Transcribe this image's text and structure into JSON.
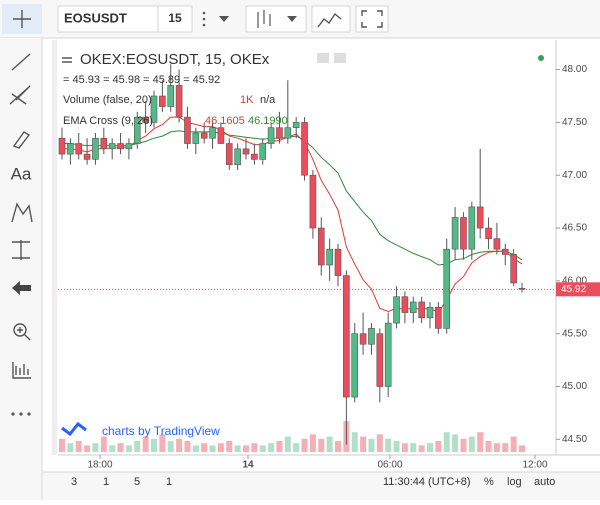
{
  "toolbar": {
    "symbol": "EOSUSDT",
    "interval": "15"
  },
  "sidebar": {
    "text_tool": "Aa"
  },
  "chart_data": {
    "type": "candlestick",
    "title": "OKEX:EOSUSDT, 15, OKEx",
    "ohlc_legend": "= 45.93 = 45.98 = 45.89 = 45.92",
    "volume_legend": {
      "name": "Volume (false, 20)",
      "value": "1K",
      "ma": "n/a"
    },
    "ema_legend": {
      "name": "EMA Cross (9, 26)",
      "fast": "46.1605",
      "slow": "46.1990"
    },
    "watermark": "charts by TradingView",
    "x_labels": [
      "18:00",
      "14",
      "06:00",
      "12:00"
    ],
    "up_color": "#53b987",
    "down_color": "#eb4d5c",
    "open": [
      47.35,
      47.2,
      47.3,
      47.2,
      47.15,
      47.35,
      47.25,
      47.3,
      47.25,
      47.3,
      47.55,
      47.5,
      47.75,
      47.65,
      47.85,
      47.55,
      47.3,
      47.4,
      47.35,
      47.45,
      47.3,
      47.1,
      47.25,
      47.2,
      47.15,
      47.3,
      47.45,
      47.35,
      47.45,
      47.5,
      47.0,
      46.5,
      46.15,
      46.3,
      46.05,
      44.9,
      45.5,
      45.4,
      45.5,
      45.0,
      45.6,
      45.85,
      45.7,
      45.8,
      45.65,
      45.75,
      45.55,
      46.3,
      46.6,
      46.3,
      46.7,
      46.5,
      46.4,
      46.3,
      46.25,
      45.93
    ],
    "high": [
      47.45,
      47.35,
      47.4,
      47.35,
      47.4,
      47.45,
      47.35,
      47.4,
      47.35,
      47.6,
      47.7,
      47.8,
      47.9,
      48.05,
      48.0,
      47.65,
      47.45,
      47.5,
      47.5,
      47.5,
      47.35,
      47.3,
      47.35,
      47.3,
      47.35,
      47.5,
      47.6,
      47.9,
      47.55,
      47.55,
      47.05,
      46.6,
      46.4,
      46.35,
      46.1,
      45.6,
      45.7,
      45.6,
      45.55,
      45.7,
      45.95,
      45.9,
      45.85,
      45.85,
      45.8,
      45.8,
      46.4,
      46.7,
      46.65,
      46.75,
      47.25,
      46.6,
      46.55,
      46.35,
      46.3,
      45.98
    ],
    "low": [
      47.15,
      47.1,
      47.15,
      47.1,
      47.1,
      47.2,
      47.15,
      47.2,
      47.15,
      47.25,
      47.4,
      47.45,
      47.6,
      47.6,
      47.5,
      47.25,
      47.2,
      47.3,
      47.25,
      47.3,
      47.05,
      47.05,
      47.15,
      47.1,
      47.1,
      47.25,
      47.3,
      47.3,
      47.35,
      46.95,
      46.4,
      46.05,
      46.0,
      45.95,
      44.45,
      44.85,
      45.3,
      45.3,
      44.85,
      44.9,
      45.55,
      45.6,
      45.6,
      45.6,
      45.55,
      45.5,
      45.5,
      46.2,
      46.2,
      46.2,
      46.4,
      46.3,
      46.25,
      46.15,
      45.95,
      45.89
    ],
    "close": [
      47.2,
      47.3,
      47.2,
      47.15,
      47.35,
      47.25,
      47.3,
      47.25,
      47.3,
      47.55,
      47.5,
      47.75,
      47.65,
      47.85,
      47.55,
      47.3,
      47.4,
      47.35,
      47.45,
      47.3,
      47.1,
      47.25,
      47.2,
      47.15,
      47.3,
      47.45,
      47.35,
      47.45,
      47.5,
      47.0,
      46.5,
      46.15,
      46.3,
      46.05,
      44.9,
      45.5,
      45.4,
      45.55,
      45.0,
      45.6,
      45.85,
      45.7,
      45.8,
      45.65,
      45.75,
      45.55,
      46.3,
      46.6,
      46.3,
      46.7,
      46.5,
      46.4,
      46.3,
      46.25,
      45.98,
      45.92
    ],
    "volume": [
      600,
      400,
      500,
      300,
      400,
      700,
      300,
      400,
      300,
      500,
      700,
      600,
      800,
      500,
      600,
      500,
      300,
      400,
      300,
      400,
      500,
      300,
      300,
      400,
      300,
      400,
      500,
      700,
      400,
      600,
      800,
      600,
      700,
      500,
      1400,
      900,
      700,
      600,
      800,
      600,
      500,
      400,
      400,
      300,
      400,
      500,
      900,
      800,
      600,
      700,
      900,
      500,
      400,
      400,
      700,
      300
    ],
    "ema_fast": {
      "color": "#e53935",
      "values": [
        47.25,
        47.25,
        47.24,
        47.22,
        47.25,
        47.25,
        47.26,
        47.26,
        47.27,
        47.33,
        47.37,
        47.44,
        47.48,
        47.55,
        47.55,
        47.5,
        47.48,
        47.46,
        47.46,
        47.43,
        47.37,
        47.35,
        47.32,
        47.29,
        47.29,
        47.32,
        47.33,
        47.36,
        47.39,
        47.31,
        47.15,
        46.95,
        46.82,
        46.67,
        46.32,
        46.16,
        46.01,
        45.92,
        45.74,
        45.71,
        45.74,
        45.73,
        45.74,
        45.73,
        45.74,
        45.7,
        45.82,
        45.97,
        46.04,
        46.17,
        46.23,
        46.27,
        46.28,
        46.28,
        46.21,
        46.1605
      ]
    },
    "ema_slow": {
      "color": "#2e8b3a",
      "values": [
        47.3,
        47.3,
        47.29,
        47.28,
        47.28,
        47.28,
        47.28,
        47.28,
        47.28,
        47.3,
        47.32,
        47.35,
        47.37,
        47.41,
        47.42,
        47.41,
        47.41,
        47.41,
        47.41,
        47.4,
        47.38,
        47.37,
        47.36,
        47.35,
        47.34,
        47.35,
        47.35,
        47.36,
        47.37,
        47.33,
        47.26,
        47.17,
        47.1,
        47.02,
        46.85,
        46.75,
        46.65,
        46.57,
        46.44,
        46.38,
        46.34,
        46.3,
        46.26,
        46.23,
        46.2,
        46.15,
        46.16,
        46.2,
        46.21,
        46.25,
        46.27,
        46.28,
        46.28,
        46.28,
        46.25,
        46.199
      ]
    },
    "ylim": [
      44.38,
      48.28
    ],
    "yticks": [
      {
        "value": 44.5,
        "label": "44.50"
      },
      {
        "value": 45,
        "label": "45.00"
      },
      {
        "value": 45.5,
        "label": "45.50"
      },
      {
        "value": 46,
        "label": "46.00"
      },
      {
        "value": 46.5,
        "label": "46.50"
      },
      {
        "value": 47,
        "label": "47.00"
      },
      {
        "value": 47.5,
        "label": "47.50"
      },
      {
        "value": 48,
        "label": "48.00"
      }
    ],
    "last_price_line": true
  },
  "bottom_bar": {
    "ranges": [
      "3",
      "1",
      "5",
      "1"
    ],
    "time": "11:30:44 (UTC+8)",
    "percent": "%",
    "log": "log",
    "auto": "auto"
  }
}
